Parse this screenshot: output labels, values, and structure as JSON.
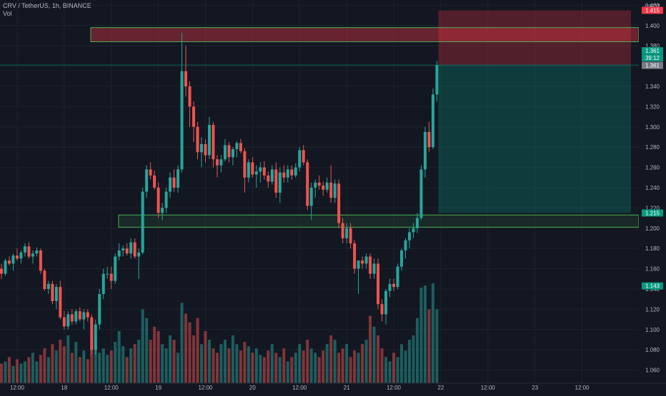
{
  "header": {
    "symbol_line": "CRV / TetherUS, 1h, BINANCE",
    "volume_label": "Vol"
  },
  "axis": {
    "currency": "USDT",
    "price_ticks": [
      "1.420",
      "1.400",
      "1.380",
      "1.360",
      "1.340",
      "1.320",
      "1.300",
      "1.280",
      "1.260",
      "1.240",
      "1.220",
      "1.200",
      "1.180",
      "1.160",
      "1.140",
      "1.120",
      "1.100",
      "1.080",
      "1.060"
    ],
    "time_ticks": [
      "12:00",
      "18",
      "12:00",
      "19",
      "12:00",
      "20",
      "12:00",
      "21",
      "12:00",
      "22",
      "12:00",
      "23",
      "12:00"
    ]
  },
  "price_labels": [
    {
      "text": "1.415",
      "color": "#f23645"
    },
    {
      "text": "1.361",
      "color": "#089981"
    },
    {
      "text": "39:12",
      "color": "#089981"
    },
    {
      "text": "1.361",
      "color": "#787b86"
    },
    {
      "text": "1.215",
      "color": "#089981"
    },
    {
      "text": "1.143",
      "color": "#089981"
    }
  ],
  "colors": {
    "up": "#26a69a",
    "down": "#ef5350",
    "zone_border": "#4caf50",
    "background": "#131722",
    "grid": "#1e222d",
    "axis_text": "#b2b5be"
  },
  "chart_data": {
    "type": "candlestick",
    "symbol": "CRV / TetherUS",
    "interval": "1h",
    "exchange": "BINANCE",
    "ylim": [
      1.047,
      1.421
    ],
    "time_range": [
      "17 08:00",
      "23 16:00"
    ],
    "x_ticks": [
      {
        "label": "12:00",
        "hour": 4
      },
      {
        "label": "18",
        "hour": 16
      },
      {
        "label": "12:00",
        "hour": 28
      },
      {
        "label": "19",
        "hour": 40
      },
      {
        "label": "12:00",
        "hour": 52
      },
      {
        "label": "20",
        "hour": 64
      },
      {
        "label": "12:00",
        "hour": 76
      },
      {
        "label": "21",
        "hour": 88
      },
      {
        "label": "12:00",
        "hour": 100
      },
      {
        "label": "22",
        "hour": 112
      },
      {
        "label": "12:00",
        "hour": 124
      },
      {
        "label": "23",
        "hour": 136
      },
      {
        "label": "12:00",
        "hour": 148
      }
    ],
    "candles": [
      [
        1.16,
        1.165,
        1.15,
        1.155
      ],
      [
        1.155,
        1.17,
        1.153,
        1.168
      ],
      [
        1.168,
        1.172,
        1.163,
        1.165
      ],
      [
        1.165,
        1.175,
        1.158,
        1.173
      ],
      [
        1.173,
        1.18,
        1.168,
        1.17
      ],
      [
        1.17,
        1.178,
        1.165,
        1.176
      ],
      [
        1.176,
        1.185,
        1.172,
        1.182
      ],
      [
        1.182,
        1.186,
        1.17,
        1.172
      ],
      [
        1.172,
        1.178,
        1.165,
        1.175
      ],
      [
        1.175,
        1.181,
        1.172,
        1.178
      ],
      [
        1.178,
        1.18,
        1.155,
        1.158
      ],
      [
        1.158,
        1.16,
        1.138,
        1.14
      ],
      [
        1.14,
        1.148,
        1.135,
        1.145
      ],
      [
        1.145,
        1.148,
        1.125,
        1.128
      ],
      [
        1.128,
        1.145,
        1.12,
        1.142
      ],
      [
        1.142,
        1.148,
        1.11,
        1.112
      ],
      [
        1.112,
        1.118,
        1.1,
        1.103
      ],
      [
        1.103,
        1.118,
        1.1,
        1.115
      ],
      [
        1.115,
        1.12,
        1.105,
        1.108
      ],
      [
        1.108,
        1.12,
        1.105,
        1.118
      ],
      [
        1.118,
        1.122,
        1.108,
        1.11
      ],
      [
        1.11,
        1.12,
        1.1,
        1.117
      ],
      [
        1.117,
        1.12,
        1.108,
        1.112
      ],
      [
        1.112,
        1.115,
        1.075,
        1.08
      ],
      [
        1.08,
        1.11,
        1.075,
        1.105
      ],
      [
        1.105,
        1.14,
        1.1,
        1.135
      ],
      [
        1.135,
        1.16,
        1.13,
        1.155
      ],
      [
        1.155,
        1.162,
        1.15,
        1.155
      ],
      [
        1.155,
        1.162,
        1.14,
        1.148
      ],
      [
        1.148,
        1.175,
        1.145,
        1.172
      ],
      [
        1.172,
        1.185,
        1.168,
        1.178
      ],
      [
        1.178,
        1.183,
        1.172,
        1.18
      ],
      [
        1.18,
        1.185,
        1.173,
        1.175
      ],
      [
        1.175,
        1.19,
        1.17,
        1.186
      ],
      [
        1.186,
        1.19,
        1.17,
        1.172
      ],
      [
        1.172,
        1.18,
        1.15,
        1.176
      ],
      [
        1.176,
        1.24,
        1.174,
        1.236
      ],
      [
        1.236,
        1.262,
        1.23,
        1.258
      ],
      [
        1.258,
        1.265,
        1.248,
        1.252
      ],
      [
        1.252,
        1.257,
        1.238,
        1.24
      ],
      [
        1.24,
        1.245,
        1.21,
        1.215
      ],
      [
        1.215,
        1.225,
        1.208,
        1.22
      ],
      [
        1.22,
        1.24,
        1.215,
        1.236
      ],
      [
        1.236,
        1.255,
        1.23,
        1.25
      ],
      [
        1.25,
        1.258,
        1.236,
        1.24
      ],
      [
        1.24,
        1.262,
        1.235,
        1.258
      ],
      [
        1.258,
        1.393,
        1.255,
        1.355
      ],
      [
        1.355,
        1.38,
        1.33,
        1.34
      ],
      [
        1.34,
        1.345,
        1.3,
        1.32
      ],
      [
        1.32,
        1.325,
        1.285,
        1.3
      ],
      [
        1.3,
        1.305,
        1.268,
        1.275
      ],
      [
        1.275,
        1.29,
        1.26,
        1.283
      ],
      [
        1.283,
        1.288,
        1.265,
        1.272
      ],
      [
        1.272,
        1.31,
        1.268,
        1.302
      ],
      [
        1.302,
        1.305,
        1.26,
        1.268
      ],
      [
        1.268,
        1.272,
        1.25,
        1.262
      ],
      [
        1.262,
        1.272,
        1.255,
        1.268
      ],
      [
        1.268,
        1.288,
        1.266,
        1.282
      ],
      [
        1.282,
        1.285,
        1.265,
        1.27
      ],
      [
        1.27,
        1.28,
        1.262,
        1.278
      ],
      [
        1.278,
        1.286,
        1.27,
        1.284
      ],
      [
        1.284,
        1.288,
        1.274,
        1.276
      ],
      [
        1.276,
        1.279,
        1.235,
        1.25
      ],
      [
        1.25,
        1.268,
        1.245,
        1.265
      ],
      [
        1.265,
        1.27,
        1.25,
        1.253
      ],
      [
        1.253,
        1.262,
        1.24,
        1.256
      ],
      [
        1.256,
        1.265,
        1.245,
        1.26
      ],
      [
        1.26,
        1.266,
        1.248,
        1.252
      ],
      [
        1.252,
        1.256,
        1.24,
        1.246
      ],
      [
        1.246,
        1.262,
        1.243,
        1.258
      ],
      [
        1.258,
        1.265,
        1.23,
        1.235
      ],
      [
        1.235,
        1.26,
        1.225,
        1.255
      ],
      [
        1.255,
        1.262,
        1.245,
        1.25
      ],
      [
        1.25,
        1.262,
        1.245,
        1.258
      ],
      [
        1.258,
        1.262,
        1.248,
        1.252
      ],
      [
        1.252,
        1.264,
        1.25,
        1.26
      ],
      [
        1.26,
        1.28,
        1.256,
        1.277
      ],
      [
        1.277,
        1.282,
        1.262,
        1.265
      ],
      [
        1.265,
        1.268,
        1.218,
        1.222
      ],
      [
        1.222,
        1.245,
        1.208,
        1.24
      ],
      [
        1.24,
        1.248,
        1.23,
        1.245
      ],
      [
        1.245,
        1.252,
        1.238,
        1.242
      ],
      [
        1.242,
        1.246,
        1.232,
        1.238
      ],
      [
        1.238,
        1.25,
        1.235,
        1.245
      ],
      [
        1.245,
        1.262,
        1.225,
        1.23
      ],
      [
        1.23,
        1.248,
        1.225,
        1.244
      ],
      [
        1.244,
        1.248,
        1.2,
        1.205
      ],
      [
        1.205,
        1.21,
        1.185,
        1.19
      ],
      [
        1.19,
        1.205,
        1.185,
        1.2
      ],
      [
        1.2,
        1.205,
        1.18,
        1.185
      ],
      [
        1.185,
        1.188,
        1.155,
        1.16
      ],
      [
        1.16,
        1.168,
        1.135,
        1.168
      ],
      [
        1.168,
        1.172,
        1.16,
        1.165
      ],
      [
        1.165,
        1.175,
        1.16,
        1.172
      ],
      [
        1.172,
        1.175,
        1.15,
        1.155
      ],
      [
        1.155,
        1.17,
        1.15,
        1.165
      ],
      [
        1.165,
        1.17,
        1.12,
        1.125
      ],
      [
        1.125,
        1.13,
        1.108,
        1.115
      ],
      [
        1.115,
        1.14,
        1.105,
        1.138
      ],
      [
        1.138,
        1.15,
        1.132,
        1.145
      ],
      [
        1.145,
        1.15,
        1.138,
        1.142
      ],
      [
        1.142,
        1.165,
        1.14,
        1.162
      ],
      [
        1.162,
        1.18,
        1.158,
        1.178
      ],
      [
        1.178,
        1.19,
        1.17,
        1.188
      ],
      [
        1.188,
        1.2,
        1.18,
        1.196
      ],
      [
        1.196,
        1.205,
        1.19,
        1.2
      ],
      [
        1.2,
        1.215,
        1.195,
        1.21
      ],
      [
        1.21,
        1.262,
        1.208,
        1.258
      ],
      [
        1.258,
        1.3,
        1.25,
        1.295
      ],
      [
        1.295,
        1.305,
        1.275,
        1.28
      ],
      [
        1.28,
        1.338,
        1.278,
        1.332
      ],
      [
        1.332,
        1.365,
        1.325,
        1.361
      ]
    ],
    "volumes": [
      9,
      10,
      12,
      8,
      11,
      9,
      10,
      12,
      14,
      10,
      13,
      16,
      12,
      18,
      15,
      20,
      17,
      22,
      14,
      19,
      12,
      15,
      11,
      18,
      22,
      14,
      16,
      13,
      15,
      19,
      24,
      17,
      12,
      16,
      18,
      20,
      34,
      30,
      20,
      26,
      24,
      18,
      16,
      22,
      20,
      14,
      37,
      32,
      28,
      22,
      30,
      18,
      24,
      20,
      16,
      14,
      18,
      20,
      16,
      22,
      18,
      15,
      19,
      17,
      14,
      16,
      13,
      12,
      15,
      18,
      14,
      12,
      16,
      10,
      12,
      14,
      18,
      15,
      20,
      16,
      14,
      12,
      15,
      18,
      22,
      20,
      14,
      16,
      18,
      12,
      15,
      14,
      18,
      20,
      31,
      26,
      22,
      16,
      12,
      10,
      14,
      12,
      18,
      15,
      20,
      22,
      30,
      44,
      45,
      34,
      46,
      34
    ],
    "zones": [
      {
        "type": "resistance",
        "top": 1.398,
        "bottom": 1.384
      },
      {
        "type": "support",
        "top": 1.213,
        "bottom": 1.201
      }
    ],
    "position": {
      "side": "short",
      "entry": 1.361,
      "stop": 1.415,
      "target": 1.215
    },
    "current_price": 1.361
  }
}
